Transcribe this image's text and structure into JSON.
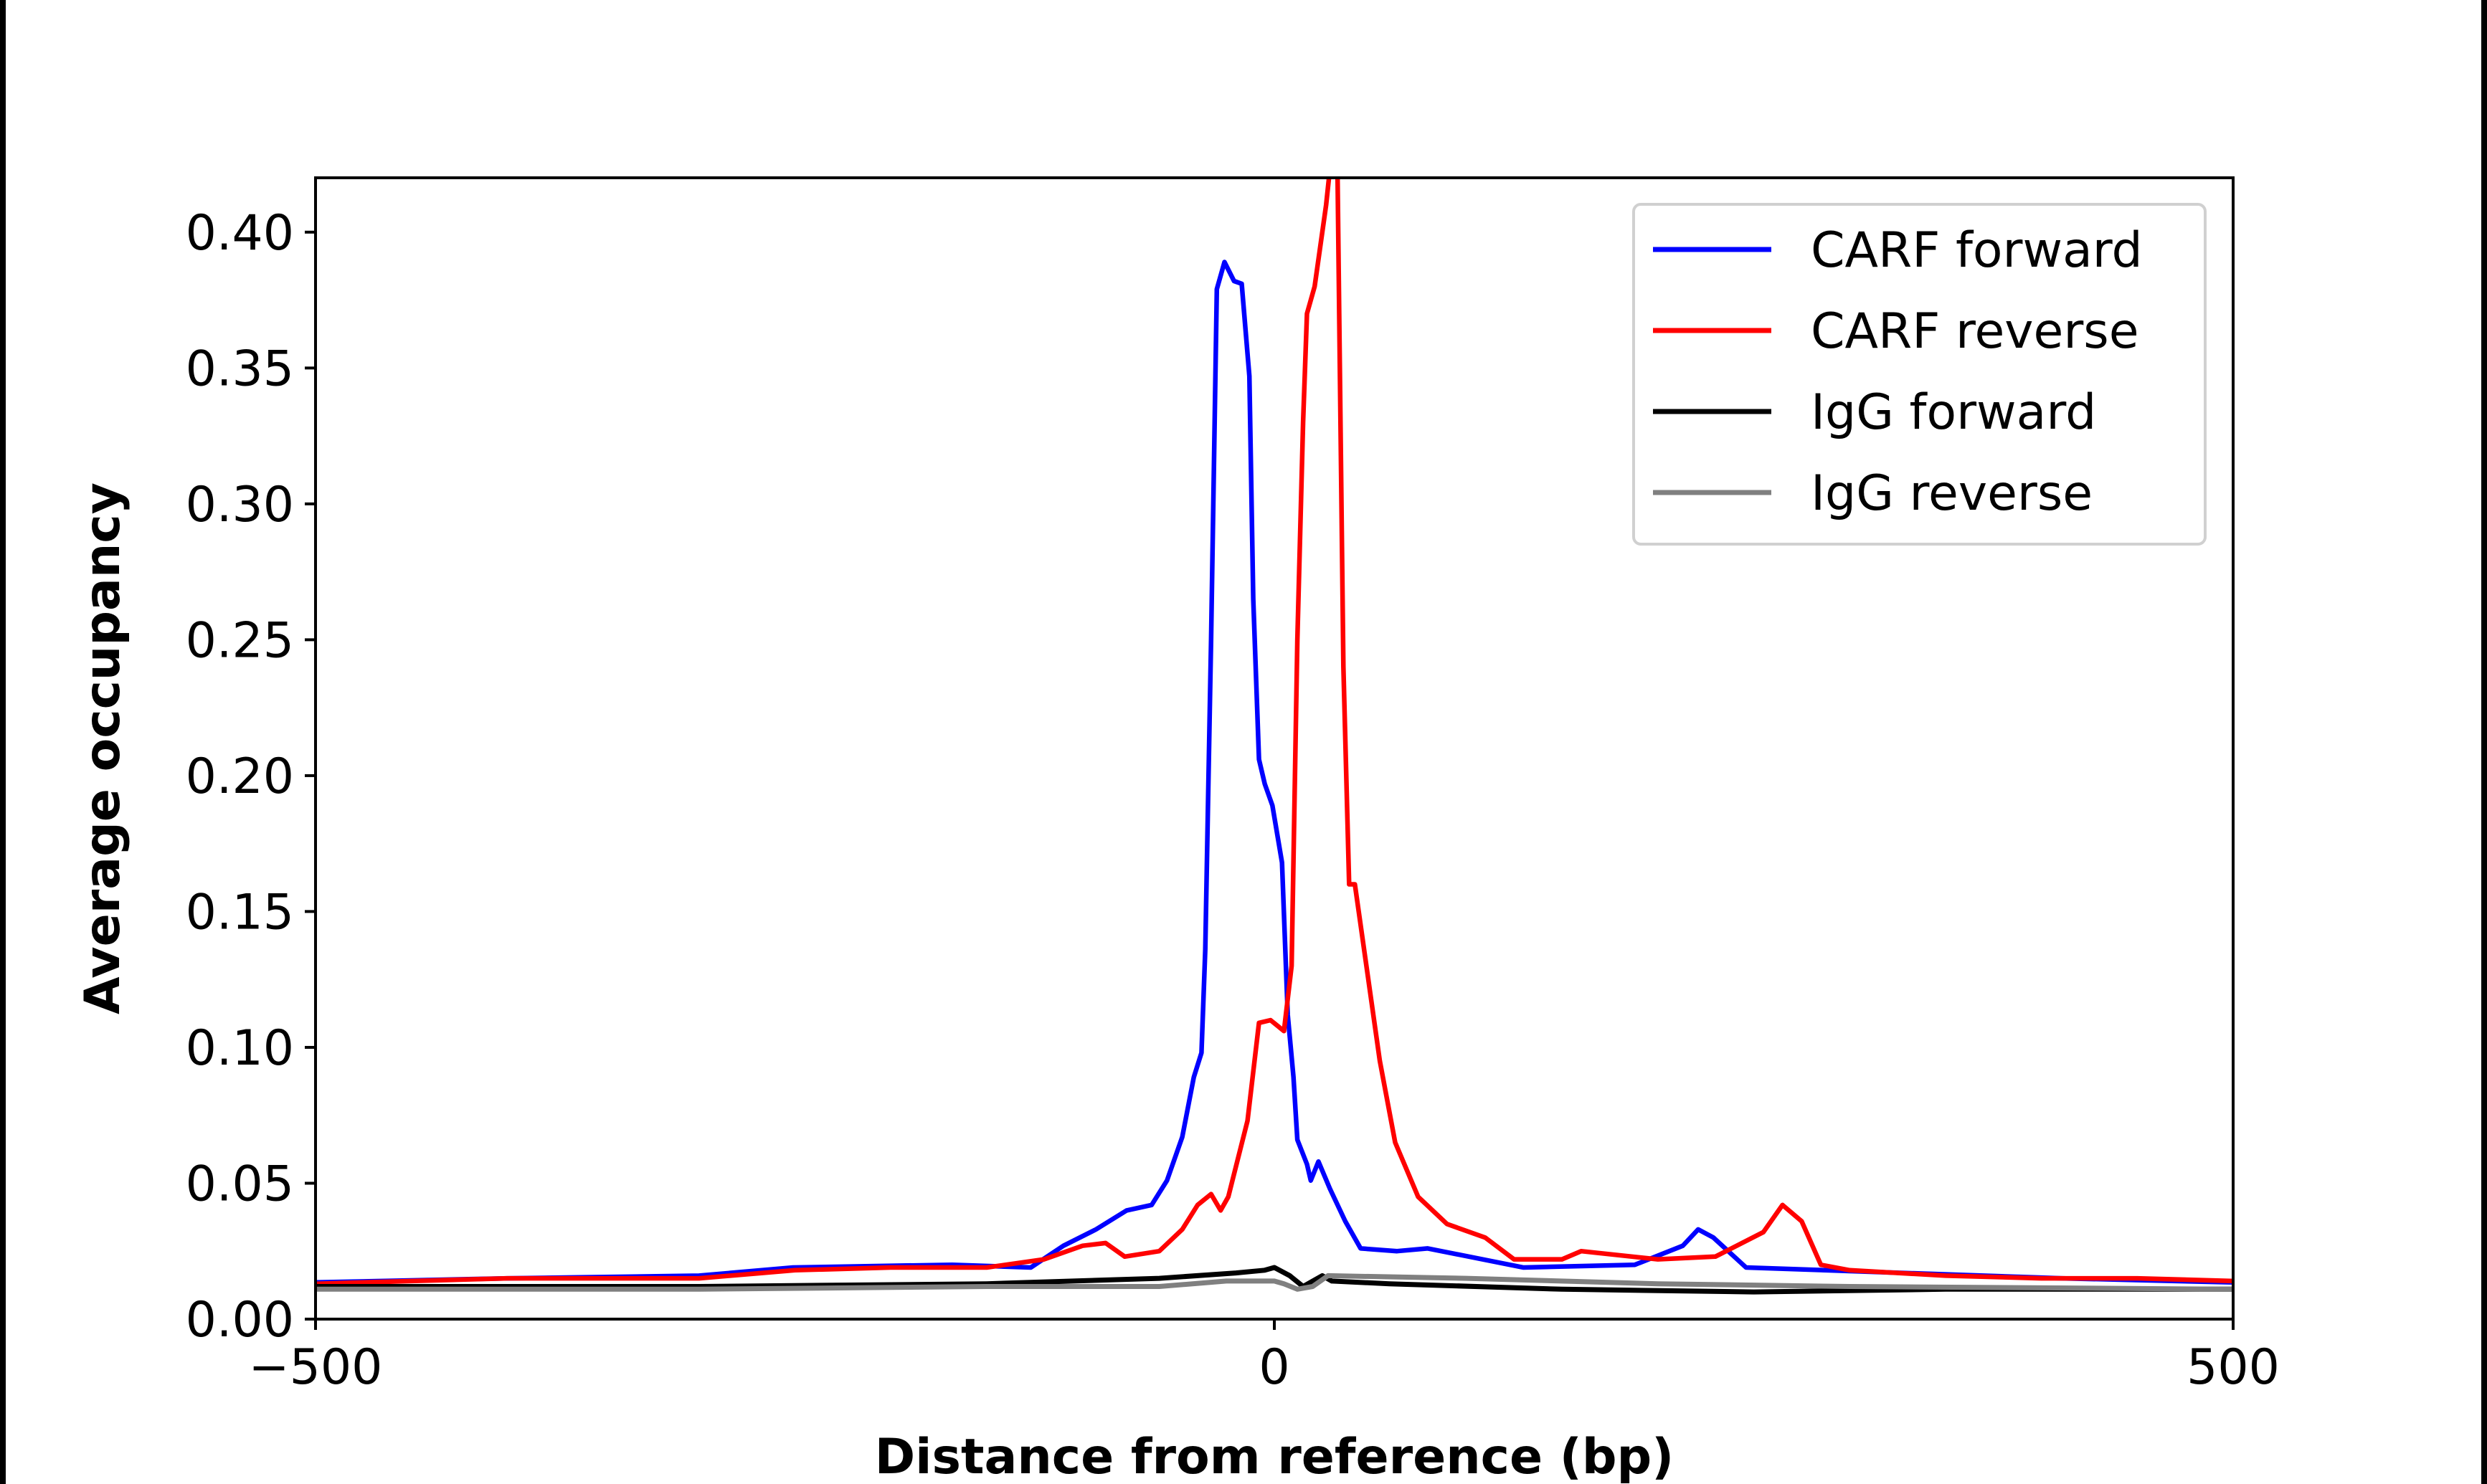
{
  "chart_data": {
    "type": "line",
    "title": "",
    "xlabel": "Distance from reference (bp)",
    "ylabel": "Average occupancy",
    "xlim": [
      -500,
      500
    ],
    "ylim": [
      0,
      0.42
    ],
    "xticks": [
      -500,
      0,
      500
    ],
    "xtick_labels": [
      "−500",
      "0",
      "500"
    ],
    "yticks": [
      0,
      0.05,
      0.1,
      0.15,
      0.2,
      0.25,
      0.3,
      0.35,
      0.4
    ],
    "ytick_labels": [
      "0.00",
      "0.05",
      "0.10",
      "0.15",
      "0.20",
      "0.25",
      "0.30",
      "0.35",
      "0.40"
    ],
    "grid": false,
    "legend_position": "top-right",
    "series": [
      {
        "name": "CARF forward",
        "color": "#0000ff",
        "x": [
          -500,
          -400,
          -300,
          -251,
          -168,
          -127,
          -110,
          -93,
          -77,
          -64,
          -56,
          -48,
          -42,
          -38,
          -36,
          -33,
          -30,
          -26,
          -21,
          -17,
          -13,
          -11,
          -8,
          -5,
          -1,
          4,
          7,
          10,
          12,
          17,
          19,
          23,
          29,
          37,
          45,
          64,
          80,
          130,
          188,
          213,
          221,
          229,
          246,
          328,
          411,
          500
        ],
        "y": [
          0.0135,
          0.015,
          0.016,
          0.019,
          0.02,
          0.019,
          0.027,
          0.033,
          0.04,
          0.042,
          0.051,
          0.067,
          0.089,
          0.098,
          0.136,
          0.25,
          0.379,
          0.389,
          0.382,
          0.381,
          0.347,
          0.265,
          0.206,
          0.197,
          0.189,
          0.168,
          0.112,
          0.089,
          0.066,
          0.057,
          0.051,
          0.058,
          0.048,
          0.036,
          0.026,
          0.025,
          0.026,
          0.019,
          0.02,
          0.027,
          0.033,
          0.03,
          0.019,
          0.017,
          0.015,
          0.0135
        ]
      },
      {
        "name": "CARF reverse",
        "color": "#ff0000",
        "x": [
          -500,
          -400,
          -300,
          -250,
          -200,
          -150,
          -120,
          -100,
          -88,
          -78,
          -60,
          -48,
          -40,
          -33,
          -28,
          -24,
          -14,
          -8,
          -2,
          5,
          9,
          12,
          15,
          17,
          21,
          27,
          30,
          33,
          36,
          39,
          42,
          47,
          55,
          63,
          75,
          90,
          110,
          125,
          150,
          160,
          200,
          230,
          255,
          265,
          275,
          285,
          300,
          350,
          400,
          450,
          500
        ],
        "y": [
          0.013,
          0.015,
          0.015,
          0.018,
          0.019,
          0.019,
          0.022,
          0.027,
          0.028,
          0.023,
          0.025,
          0.033,
          0.042,
          0.046,
          0.04,
          0.045,
          0.073,
          0.109,
          0.11,
          0.106,
          0.13,
          0.25,
          0.33,
          0.37,
          0.38,
          0.41,
          0.43,
          0.42,
          0.24,
          0.16,
          0.16,
          0.135,
          0.095,
          0.065,
          0.045,
          0.035,
          0.03,
          0.022,
          0.022,
          0.025,
          0.022,
          0.023,
          0.032,
          0.042,
          0.036,
          0.02,
          0.018,
          0.016,
          0.015,
          0.015,
          0.014
        ]
      },
      {
        "name": "IgG forward",
        "color": "#000000",
        "x": [
          -500,
          -300,
          -150,
          -60,
          -20,
          -5,
          0,
          8,
          15,
          25,
          30,
          60,
          150,
          250,
          350,
          500
        ],
        "y": [
          0.012,
          0.012,
          0.013,
          0.015,
          0.017,
          0.018,
          0.019,
          0.016,
          0.012,
          0.016,
          0.014,
          0.013,
          0.011,
          0.01,
          0.011,
          0.011
        ]
      },
      {
        "name": "IgG reverse",
        "color": "#808080",
        "x": [
          -500,
          -300,
          -150,
          -60,
          -25,
          0,
          5,
          12,
          20,
          28,
          100,
          200,
          300,
          500
        ],
        "y": [
          0.011,
          0.011,
          0.012,
          0.012,
          0.014,
          0.014,
          0.013,
          0.011,
          0.012,
          0.016,
          0.015,
          0.013,
          0.012,
          0.011
        ]
      }
    ]
  }
}
